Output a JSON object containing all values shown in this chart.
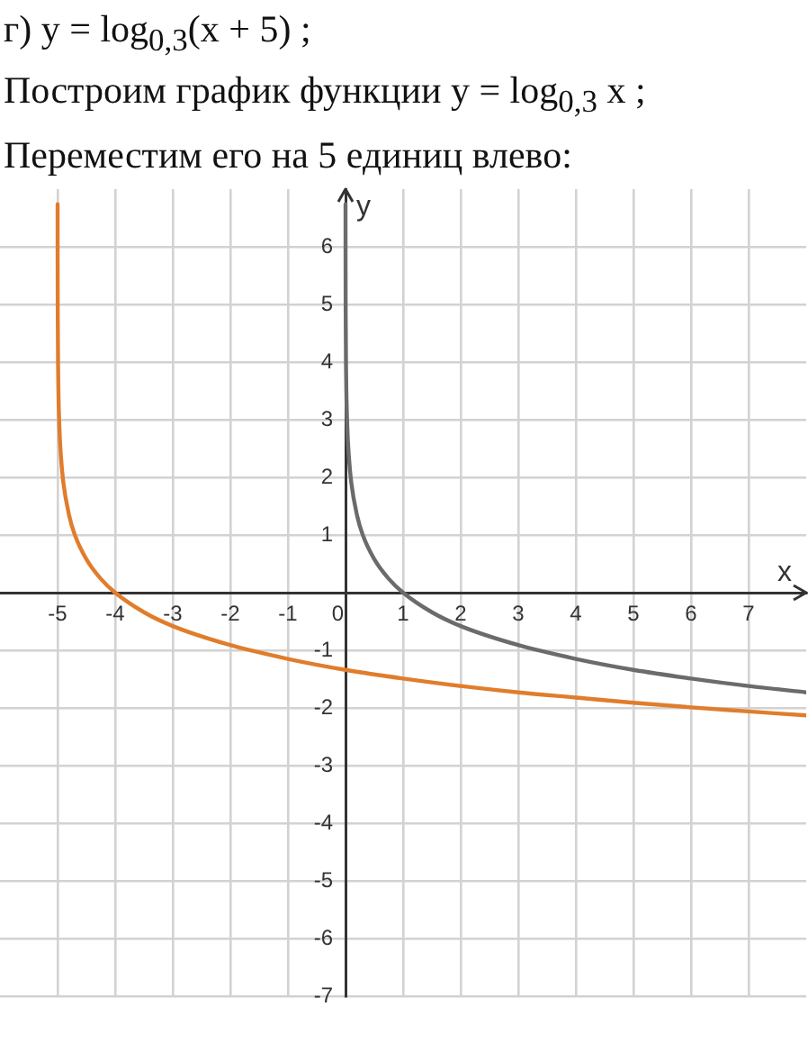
{
  "chart_data": {
    "type": "line",
    "title": "г) y = log$_{0,3}$(x + 5) ;",
    "annotations": [
      "Построим график функции y = log$_{0,3}$ x ;",
      "Переместим его на 5 единиц влево:"
    ],
    "xlabel": "x",
    "ylabel": "y",
    "xlim": [
      -6,
      8
    ],
    "ylim": [
      -7,
      7
    ],
    "xticks": [
      -5,
      -4,
      -3,
      -2,
      -1,
      0,
      1,
      2,
      3,
      4,
      5,
      6,
      7
    ],
    "yticks": [
      -7,
      -6,
      -5,
      -4,
      -3,
      -2,
      -1,
      {
        "value": 0,
        "label": null
      },
      1,
      2,
      3,
      4,
      5,
      6
    ],
    "grid": true,
    "marker": "none",
    "line_style": "solid",
    "series": [
      {
        "color": "#6b6b6b",
        "x": [
          0.0003,
          0.001,
          0.003,
          0.01,
          0.03,
          0.06,
          0.1,
          0.2,
          0.3,
          0.5,
          0.75,
          1,
          1.5,
          2,
          3,
          4,
          5,
          6,
          7,
          8
        ],
        "values": [
          6.74,
          5.74,
          4.83,
          3.83,
          2.91,
          2.34,
          1.91,
          1.34,
          1,
          0.58,
          0.24,
          0,
          -0.34,
          -0.58,
          -0.91,
          -1.15,
          -1.34,
          -1.49,
          -1.62,
          -1.73
        ]
      },
      {
        "color": "#e07d2c",
        "x": [
          -4.9997,
          -4.999,
          -4.997,
          -4.99,
          -4.97,
          -4.94,
          -4.9,
          -4.8,
          -4.7,
          -4.5,
          -4.25,
          -4,
          -3.5,
          -3,
          -2,
          -1,
          0,
          1,
          2,
          3,
          4,
          5,
          6,
          7,
          8
        ],
        "values": [
          6.74,
          5.74,
          4.83,
          3.83,
          2.91,
          2.34,
          1.91,
          1.34,
          1,
          0.58,
          0.24,
          0,
          -0.34,
          -0.58,
          -0.91,
          -1.15,
          -1.34,
          -1.49,
          -1.62,
          -1.73,
          -1.82,
          -1.91,
          -1.99,
          -2.06,
          -2.13
        ]
      }
    ]
  }
}
